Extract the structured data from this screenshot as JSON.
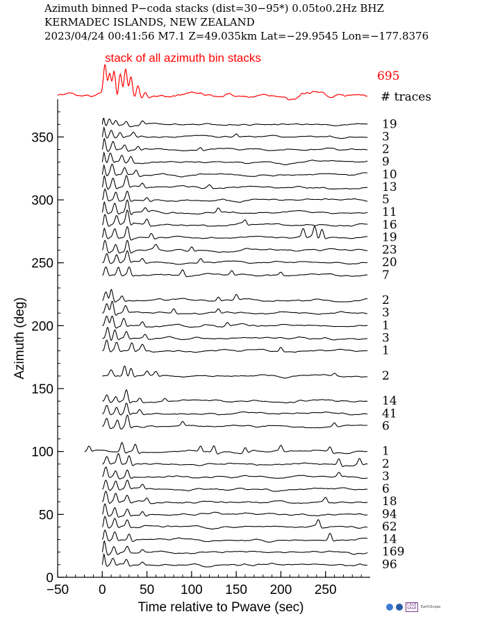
{
  "header": {
    "line1": "Azimuth binned P−coda stacks (dist=30−95*)  0.05to0.2Hz  BHZ",
    "line2": "KERMADEC ISLANDS, NEW ZEALAND",
    "line3": "2023/04/24  00:41:56  M7.1  Z=49.035km Lat=−29.9545 Lon=−177.8376"
  },
  "colors": {
    "stack": "#ff0000",
    "trace": "#000000"
  },
  "logos": {
    "agency_1": "CAGE",
    "agency_2": "SAGE",
    "agency_3": "EarthScope"
  },
  "chart_data": {
    "type": "line",
    "title": "",
    "xlabel": "Time relative to Pwave (sec)",
    "ylabel": "Azimuth (deg)",
    "xlim": [
      -50,
      300
    ],
    "ylim": [
      0,
      380
    ],
    "xticks": [
      -50,
      0,
      50,
      100,
      150,
      200,
      250
    ],
    "xtick_labels": [
      "−50",
      "0",
      "50",
      "100",
      "150",
      "200",
      "250"
    ],
    "yticks": [
      0,
      50,
      100,
      150,
      200,
      250,
      300,
      350
    ],
    "yticks_minor_step": 10,
    "grid": false,
    "top_stack": {
      "label": "stack of all azimuth bin stacks",
      "total_traces": "695",
      "x_start": -50,
      "peaks": [
        [
          3,
          1.0
        ],
        [
          8,
          0.85
        ],
        [
          13,
          0.95
        ],
        [
          20,
          0.7
        ],
        [
          26,
          0.8
        ],
        [
          32,
          0.55
        ],
        [
          40,
          0.35
        ],
        [
          48,
          0.15
        ]
      ]
    },
    "traces_header": "# traces",
    "bins": [
      {
        "azimuth": 360,
        "traces": "19",
        "start": 0,
        "peaks": [
          [
            0,
            1.0
          ],
          [
            8,
            0.4
          ],
          [
            15,
            0.35
          ],
          [
            27,
            0.3
          ],
          [
            45,
            0.25
          ]
        ]
      },
      {
        "azimuth": 350,
        "traces": "3",
        "start": 0,
        "peaks": [
          [
            1,
            0.9
          ],
          [
            10,
            0.5
          ],
          [
            20,
            0.4
          ],
          [
            35,
            0.3
          ],
          [
            150,
            0.2
          ]
        ]
      },
      {
        "azimuth": 340,
        "traces": "2",
        "start": 0,
        "peaks": [
          [
            2,
            0.9
          ],
          [
            12,
            0.6
          ],
          [
            25,
            0.4
          ],
          [
            40,
            0.3
          ],
          [
            110,
            0.2
          ]
        ]
      },
      {
        "azimuth": 330,
        "traces": "9",
        "start": 0,
        "peaks": [
          [
            1,
            0.9
          ],
          [
            9,
            0.6
          ],
          [
            22,
            0.5
          ],
          [
            32,
            0.4
          ]
        ]
      },
      {
        "azimuth": 320,
        "traces": "10",
        "start": 0,
        "peaks": [
          [
            1,
            0.9
          ],
          [
            11,
            0.7
          ],
          [
            25,
            0.5
          ],
          [
            38,
            0.4
          ]
        ]
      },
      {
        "azimuth": 310,
        "traces": "13",
        "start": 0,
        "peaks": [
          [
            2,
            0.9
          ],
          [
            12,
            0.7
          ],
          [
            27,
            0.8
          ],
          [
            45,
            0.3
          ],
          [
            120,
            0.2
          ]
        ]
      },
      {
        "azimuth": 300,
        "traces": "5",
        "start": 0,
        "peaks": [
          [
            3,
            0.8
          ],
          [
            15,
            0.6
          ],
          [
            28,
            0.7
          ],
          [
            50,
            0.3
          ]
        ]
      },
      {
        "azimuth": 290,
        "traces": "11",
        "start": 0,
        "peaks": [
          [
            2,
            0.8
          ],
          [
            14,
            0.7
          ],
          [
            28,
            1.0
          ],
          [
            48,
            0.3
          ],
          [
            130,
            0.3
          ]
        ]
      },
      {
        "azimuth": 280,
        "traces": "16",
        "start": 0,
        "peaks": [
          [
            3,
            0.8
          ],
          [
            16,
            0.6
          ],
          [
            28,
            1.0
          ],
          [
            50,
            0.4
          ],
          [
            160,
            0.3
          ]
        ]
      },
      {
        "azimuth": 270,
        "traces": "19",
        "start": 0,
        "peaks": [
          [
            2,
            0.7
          ],
          [
            14,
            0.6
          ],
          [
            28,
            0.9
          ],
          [
            55,
            0.4
          ],
          [
            225,
            0.6
          ],
          [
            238,
            0.8
          ],
          [
            246,
            0.6
          ]
        ]
      },
      {
        "azimuth": 260,
        "traces": "23",
        "start": 0,
        "peaks": [
          [
            3,
            0.8
          ],
          [
            15,
            0.6
          ],
          [
            28,
            0.9
          ],
          [
            60,
            0.3
          ],
          [
            100,
            0.3
          ]
        ]
      },
      {
        "azimuth": 250,
        "traces": "20",
        "start": 0,
        "peaks": [
          [
            5,
            0.7
          ],
          [
            16,
            0.6
          ],
          [
            28,
            0.8
          ],
          [
            45,
            0.3
          ],
          [
            110,
            0.3
          ]
        ]
      },
      {
        "azimuth": 240,
        "traces": "7",
        "start": 0,
        "peaks": [
          [
            4,
            0.6
          ],
          [
            18,
            0.6
          ],
          [
            30,
            0.6
          ],
          [
            90,
            0.4
          ],
          [
            145,
            0.3
          ],
          [
            200,
            0.2
          ]
        ]
      },
      {
        "azimuth": 220,
        "traces": "2",
        "start": 0,
        "peaks": [
          [
            4,
            0.7
          ],
          [
            10,
            0.9
          ],
          [
            22,
            0.4
          ],
          [
            130,
            0.3
          ],
          [
            150,
            0.4
          ]
        ]
      },
      {
        "azimuth": 210,
        "traces": "3",
        "start": 0,
        "peaks": [
          [
            5,
            0.7
          ],
          [
            11,
            1.0
          ],
          [
            26,
            0.5
          ],
          [
            80,
            0.3
          ],
          [
            130,
            0.3
          ]
        ]
      },
      {
        "azimuth": 200,
        "traces": "1",
        "start": 0,
        "peaks": [
          [
            5,
            0.7
          ],
          [
            11,
            0.8
          ],
          [
            24,
            0.6
          ],
          [
            45,
            0.3
          ],
          [
            140,
            0.3
          ]
        ]
      },
      {
        "azimuth": 190,
        "traces": "3",
        "start": 0,
        "peaks": [
          [
            6,
            0.9
          ],
          [
            14,
            0.7
          ],
          [
            27,
            0.5
          ],
          [
            48,
            0.3
          ]
        ]
      },
      {
        "azimuth": 180,
        "traces": "1",
        "start": 0,
        "peaks": [
          [
            5,
            0.8
          ],
          [
            16,
            0.6
          ],
          [
            33,
            0.6
          ],
          [
            45,
            0.4
          ],
          [
            200,
            0.3
          ]
        ]
      },
      {
        "azimuth": 160,
        "traces": "2",
        "start": 0,
        "peaks": [
          [
            10,
            0.4
          ],
          [
            25,
            0.8
          ],
          [
            32,
            0.6
          ],
          [
            50,
            0.3
          ],
          [
            60,
            0.3
          ],
          [
            260,
            0.2
          ]
        ]
      },
      {
        "azimuth": 140,
        "traces": "14",
        "start": 0,
        "peaks": [
          [
            5,
            0.5
          ],
          [
            15,
            0.4
          ],
          [
            27,
            0.9
          ],
          [
            42,
            0.3
          ],
          [
            70,
            0.2
          ]
        ]
      },
      {
        "azimuth": 130,
        "traces": "41",
        "start": 0,
        "peaks": [
          [
            5,
            0.6
          ],
          [
            16,
            0.5
          ],
          [
            27,
            0.8
          ],
          [
            42,
            0.3
          ]
        ]
      },
      {
        "azimuth": 120,
        "traces": "6",
        "start": 0,
        "peaks": [
          [
            5,
            0.6
          ],
          [
            17,
            0.6
          ],
          [
            28,
            0.9
          ],
          [
            90,
            0.3
          ],
          [
            260,
            0.3
          ]
        ]
      },
      {
        "azimuth": 100,
        "traces": "1",
        "start": -20,
        "peaks": [
          [
            -15,
            0.4
          ],
          [
            22,
            0.7
          ],
          [
            37,
            0.6
          ],
          [
            110,
            0.4
          ],
          [
            125,
            0.5
          ],
          [
            160,
            0.4
          ],
          [
            200,
            0.4
          ],
          [
            255,
            0.4
          ]
        ]
      },
      {
        "azimuth": 90,
        "traces": "2",
        "start": 0,
        "peaks": [
          [
            5,
            0.5
          ],
          [
            18,
            0.7
          ],
          [
            30,
            0.7
          ],
          [
            265,
            0.5
          ],
          [
            288,
            0.4
          ]
        ]
      },
      {
        "azimuth": 80,
        "traces": "3",
        "start": 0,
        "peaks": [
          [
            4,
            0.7
          ],
          [
            15,
            0.5
          ],
          [
            28,
            0.6
          ],
          [
            265,
            0.3
          ]
        ]
      },
      {
        "azimuth": 70,
        "traces": "6",
        "start": 0,
        "peaks": [
          [
            4,
            0.7
          ],
          [
            15,
            0.6
          ],
          [
            28,
            0.6
          ],
          [
            45,
            0.3
          ]
        ]
      },
      {
        "azimuth": 60,
        "traces": "18",
        "start": 0,
        "peaks": [
          [
            4,
            0.8
          ],
          [
            15,
            0.6
          ],
          [
            28,
            0.5
          ],
          [
            50,
            0.3
          ],
          [
            250,
            0.3
          ]
        ]
      },
      {
        "azimuth": 50,
        "traces": "94",
        "start": 0,
        "peaks": [
          [
            3,
            0.8
          ],
          [
            14,
            0.6
          ],
          [
            28,
            0.5
          ],
          [
            45,
            0.3
          ]
        ]
      },
      {
        "azimuth": 40,
        "traces": "62",
        "start": 0,
        "peaks": [
          [
            3,
            0.8
          ],
          [
            14,
            0.6
          ],
          [
            28,
            0.5
          ],
          [
            242,
            0.5
          ]
        ]
      },
      {
        "azimuth": 30,
        "traces": "14",
        "start": 0,
        "peaks": [
          [
            3,
            0.7
          ],
          [
            14,
            0.6
          ],
          [
            30,
            0.5
          ],
          [
            255,
            0.5
          ]
        ]
      },
      {
        "azimuth": 20,
        "traces": "169",
        "start": 0,
        "peaks": [
          [
            2,
            0.9
          ],
          [
            13,
            0.5
          ],
          [
            28,
            0.4
          ],
          [
            45,
            0.2
          ]
        ]
      },
      {
        "azimuth": 10,
        "traces": "96",
        "start": 0,
        "peaks": [
          [
            1,
            1.0
          ],
          [
            12,
            0.5
          ],
          [
            27,
            0.4
          ],
          [
            45,
            0.2
          ]
        ]
      }
    ]
  }
}
